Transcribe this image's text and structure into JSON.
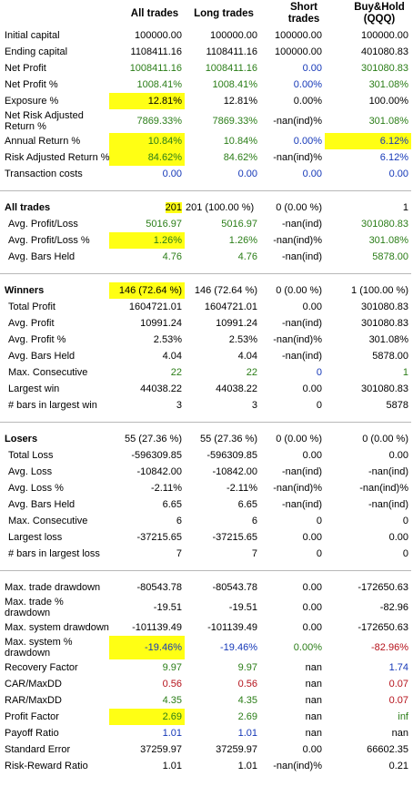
{
  "headers": {
    "all": "All trades",
    "long": "Long trades",
    "short": "Short trades",
    "buyhold": "Buy&Hold (QQQ)"
  },
  "rows": [
    {
      "label": "Initial capital",
      "all": "100000.00",
      "long": "100000.00",
      "short": "100000.00",
      "bh": "100000.00"
    },
    {
      "label": "Ending capital",
      "all": "1108411.16",
      "long": "1108411.16",
      "short": "100000.00",
      "bh": "401080.83"
    },
    {
      "label": "Net Profit",
      "all": "1008411.16",
      "long": "1008411.16",
      "short": "0.00",
      "bh": "301080.83"
    },
    {
      "label": "Net Profit %",
      "all": "1008.41%",
      "long": "1008.41%",
      "short": "0.00%",
      "bh": "301.08%"
    },
    {
      "label": "Exposure %",
      "all": "12.81%",
      "long": "12.81%",
      "short": "0.00%",
      "bh": "100.00%"
    },
    {
      "label": "Net Risk Adjusted Return %",
      "all": "7869.33%",
      "long": "7869.33%",
      "short": "-nan(ind)%",
      "bh": "301.08%"
    },
    {
      "label": "Annual Return %",
      "all": "10.84%",
      "long": "10.84%",
      "short": "0.00%",
      "bh": "6.12%"
    },
    {
      "label": "Risk Adjusted Return %",
      "all": "84.62%",
      "long": "84.62%",
      "short": "-nan(ind)%",
      "bh": "6.12%"
    },
    {
      "label": "Transaction costs",
      "all": "0.00",
      "long": "0.00",
      "short": "0.00",
      "bh": "0.00"
    },
    {
      "label": "All trades",
      "all": "201",
      "long": "201 (100.00 %)",
      "short": "0 (0.00 %)",
      "bh": "1"
    },
    {
      "label": "Avg. Profit/Loss",
      "all": "5016.97",
      "long": "5016.97",
      "short": "-nan(ind)",
      "bh": "301080.83"
    },
    {
      "label": "Avg. Profit/Loss %",
      "all": "1.26%",
      "long": "1.26%",
      "short": "-nan(ind)%",
      "bh": "301.08%"
    },
    {
      "label": "Avg. Bars Held",
      "all": "4.76",
      "long": "4.76",
      "short": "-nan(ind)",
      "bh": "5878.00"
    },
    {
      "label": "Winners",
      "all": "146 (72.64 %)",
      "long": "146 (72.64 %)",
      "short": "0 (0.00 %)",
      "bh": "1 (100.00 %)"
    },
    {
      "label": "Total Profit",
      "all": "1604721.01",
      "long": "1604721.01",
      "short": "0.00",
      "bh": "301080.83"
    },
    {
      "label": "Avg. Profit",
      "all": "10991.24",
      "long": "10991.24",
      "short": "-nan(ind)",
      "bh": "301080.83"
    },
    {
      "label": "Avg. Profit %",
      "all": "2.53%",
      "long": "2.53%",
      "short": "-nan(ind)%",
      "bh": "301.08%"
    },
    {
      "label": "Avg. Bars Held",
      "all": "4.04",
      "long": "4.04",
      "short": "-nan(ind)",
      "bh": "5878.00"
    },
    {
      "label": "Max. Consecutive",
      "all": "22",
      "long": "22",
      "short": "0",
      "bh": "1"
    },
    {
      "label": "Largest win",
      "all": "44038.22",
      "long": "44038.22",
      "short": "0.00",
      "bh": "301080.83"
    },
    {
      "label": "# bars in largest win",
      "all": "3",
      "long": "3",
      "short": "0",
      "bh": "5878"
    },
    {
      "label": "Losers",
      "all": "55 (27.36 %)",
      "long": "55 (27.36 %)",
      "short": "0 (0.00 %)",
      "bh": "0 (0.00 %)"
    },
    {
      "label": "Total Loss",
      "all": "-596309.85",
      "long": "-596309.85",
      "short": "0.00",
      "bh": "0.00"
    },
    {
      "label": "Avg. Loss",
      "all": "-10842.00",
      "long": "-10842.00",
      "short": "-nan(ind)",
      "bh": "-nan(ind)"
    },
    {
      "label": "Avg. Loss %",
      "all": "-2.11%",
      "long": "-2.11%",
      "short": "-nan(ind)%",
      "bh": "-nan(ind)%"
    },
    {
      "label": "Avg. Bars Held",
      "all": "6.65",
      "long": "6.65",
      "short": "-nan(ind)",
      "bh": "-nan(ind)"
    },
    {
      "label": "Max. Consecutive",
      "all": "6",
      "long": "6",
      "short": "0",
      "bh": "0"
    },
    {
      "label": "Largest loss",
      "all": "-37215.65",
      "long": "-37215.65",
      "short": "0.00",
      "bh": "0.00"
    },
    {
      "label": "# bars in largest loss",
      "all": "7",
      "long": "7",
      "short": "0",
      "bh": "0"
    },
    {
      "label": "Max. trade drawdown",
      "all": "-80543.78",
      "long": "-80543.78",
      "short": "0.00",
      "bh": "-172650.63"
    },
    {
      "label": "Max. trade % drawdown",
      "all": "-19.51",
      "long": "-19.51",
      "short": "0.00",
      "bh": "-82.96"
    },
    {
      "label": "Max. system drawdown",
      "all": "-101139.49",
      "long": "-101139.49",
      "short": "0.00",
      "bh": "-172650.63"
    },
    {
      "label": "Max. system % drawdown",
      "all": "-19.46%",
      "long": "-19.46%",
      "short": "0.00%",
      "bh": "-82.96%"
    },
    {
      "label": "Recovery Factor",
      "all": "9.97",
      "long": "9.97",
      "short": "nan",
      "bh": "1.74"
    },
    {
      "label": "CAR/MaxDD",
      "all": "0.56",
      "long": "0.56",
      "short": "nan",
      "bh": "0.07"
    },
    {
      "label": "RAR/MaxDD",
      "all": "4.35",
      "long": "4.35",
      "short": "nan",
      "bh": "0.07"
    },
    {
      "label": "Profit Factor",
      "all": "2.69",
      "long": "2.69",
      "short": "nan",
      "bh": "inf"
    },
    {
      "label": "Payoff Ratio",
      "all": "1.01",
      "long": "1.01",
      "short": "nan",
      "bh": "nan"
    },
    {
      "label": "Standard Error",
      "all": "37259.97",
      "long": "37259.97",
      "short": "0.00",
      "bh": "66602.35"
    },
    {
      "label": "Risk-Reward Ratio",
      "all": "1.01",
      "long": "1.01",
      "short": "-nan(ind)%",
      "bh": "0.21"
    }
  ],
  "colors": {
    "green": "#2a7d17",
    "blue": "#1538b8",
    "red": "#b5121b",
    "highlight": "#ffff14"
  }
}
